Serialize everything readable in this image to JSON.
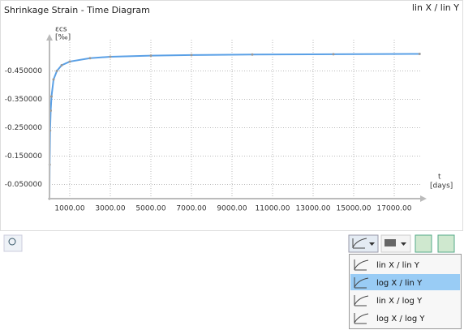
{
  "chart_data": {
    "type": "line",
    "title": "Shrinkage Strain - Time Diagram",
    "y_label": "εcs",
    "y_unit": "[‰]",
    "x_label": "t",
    "x_unit": "[days]",
    "x": [
      0,
      10,
      30,
      60,
      100,
      200,
      365,
      600,
      1000,
      2000,
      3000,
      5000,
      7000,
      10000,
      14000,
      18250
    ],
    "series": [
      {
        "name": "εcs",
        "color": "#5aa0e6",
        "values": [
          0,
          -0.12,
          -0.24,
          -0.31,
          -0.36,
          -0.42,
          -0.45,
          -0.47,
          -0.483,
          -0.495,
          -0.5,
          -0.504,
          -0.506,
          -0.508,
          -0.509,
          -0.51
        ]
      }
    ],
    "xlim": [
      0,
      18300
    ],
    "xticks": [
      {
        "value": 1000,
        "label": "1000.00"
      },
      {
        "value": 3000,
        "label": "3000.00"
      },
      {
        "value": 5000,
        "label": "5000.00"
      },
      {
        "value": 7000,
        "label": "7000.00"
      },
      {
        "value": 9000,
        "label": "9000.00"
      },
      {
        "value": 11000,
        "label": "11000.00"
      },
      {
        "value": 13000,
        "label": "13000.00"
      },
      {
        "value": 15000,
        "label": "15000.00"
      },
      {
        "value": 17000,
        "label": "17000.00"
      }
    ],
    "ylim": [
      0,
      -0.56
    ],
    "yticks": [
      {
        "value": -0.45,
        "label": "-0.450000"
      },
      {
        "value": -0.35,
        "label": "-0.350000"
      },
      {
        "value": -0.25,
        "label": "-0.250000"
      },
      {
        "value": -0.15,
        "label": "-0.150000"
      },
      {
        "value": -0.05,
        "label": "-0.050000"
      }
    ],
    "grid": true
  },
  "scale_mode": "lin X / lin Y",
  "menu": {
    "items": [
      "lin X / lin Y",
      "log X / lin Y",
      "lin X / log Y",
      "log X / log Y"
    ],
    "selected": 1
  }
}
